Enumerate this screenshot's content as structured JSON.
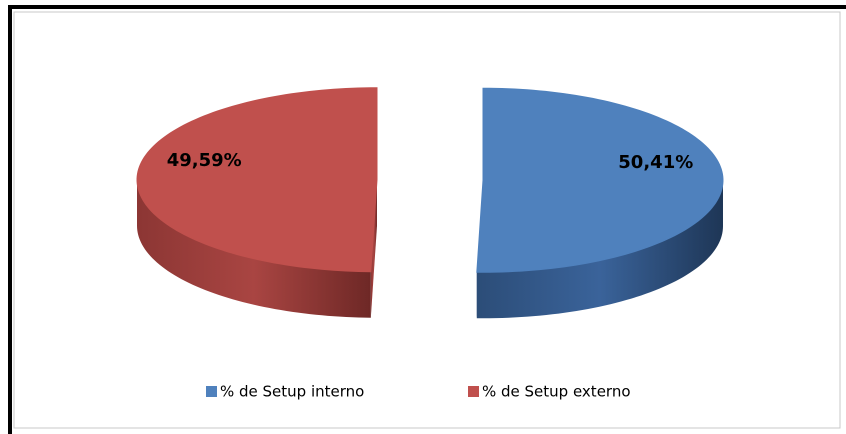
{
  "chart_data": {
    "type": "pie",
    "categories": [
      "% de Setup interno",
      "% de Setup externo"
    ],
    "values": [
      50.41,
      49.59
    ],
    "value_labels": [
      "50,41%",
      "49,59%"
    ],
    "colors": [
      "#4f81bd",
      "#c0504d"
    ],
    "legend": "bottom"
  }
}
